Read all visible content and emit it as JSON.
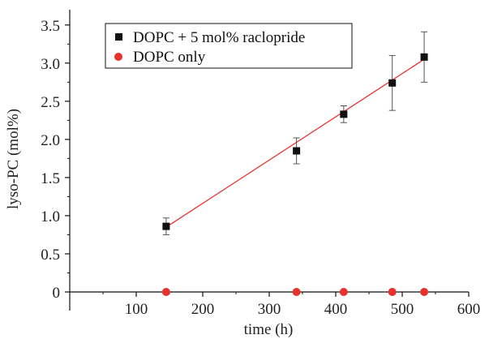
{
  "chart_data": {
    "type": "scatter",
    "xlabel": "time (h)",
    "ylabel": "lyso-PC (mol%)",
    "xlim": [
      0,
      600
    ],
    "ylim": [
      0,
      3.7
    ],
    "x_ticks": [
      "100",
      "200",
      "300",
      "400",
      "500",
      "600"
    ],
    "y_ticks": [
      "0",
      "0.5",
      "1.0",
      "1.5",
      "2.0",
      "2.5",
      "3.0",
      "3.5"
    ],
    "grid": false,
    "legend_position": "top-left",
    "series": [
      {
        "name": "DOPC + 5 mol% raclopride",
        "marker": "square",
        "color": "#111111",
        "x": [
          145,
          341,
          412,
          485,
          533
        ],
        "y": [
          0.86,
          1.85,
          2.33,
          2.74,
          3.08
        ],
        "yerr": [
          0.11,
          0.17,
          0.11,
          0.36,
          0.33
        ]
      },
      {
        "name": "DOPC only",
        "marker": "circle",
        "color": "#e8312c",
        "x": [
          145,
          341,
          412,
          485,
          533
        ],
        "y": [
          0,
          0,
          0,
          0,
          0
        ]
      }
    ],
    "fit_line": {
      "color": "#e8312c",
      "x": [
        145,
        533
      ],
      "y": [
        0.85,
        3.05
      ]
    }
  }
}
